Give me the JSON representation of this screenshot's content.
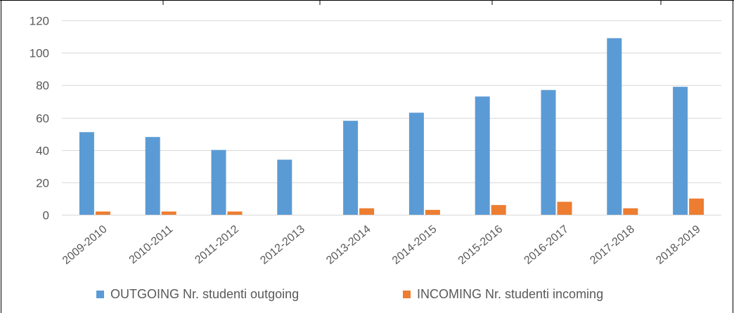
{
  "chart_data": {
    "type": "bar",
    "title": "",
    "xlabel": "",
    "ylabel": "",
    "ylim": [
      0,
      120
    ],
    "yticks": [
      0,
      20,
      40,
      60,
      80,
      100,
      120
    ],
    "grid": true,
    "legend_position": "bottom",
    "categories": [
      "2009-2010",
      "2010-2011",
      "2011-2012",
      "2012-2013",
      "2013-2014",
      "2014-2015",
      "2015-2016",
      "2016-2017",
      "2017-2018",
      "2018-2019"
    ],
    "series": [
      {
        "name": "OUTGOING Nr. studenti outgoing",
        "color": "#5b9bd5",
        "values": [
          51,
          48,
          40,
          34,
          58,
          63,
          73,
          77,
          109,
          79
        ]
      },
      {
        "name": "INCOMING Nr. studenti incoming",
        "color": "#ed7d31",
        "values": [
          2,
          2,
          2,
          0,
          4,
          3,
          6,
          8,
          4,
          10
        ]
      }
    ]
  }
}
